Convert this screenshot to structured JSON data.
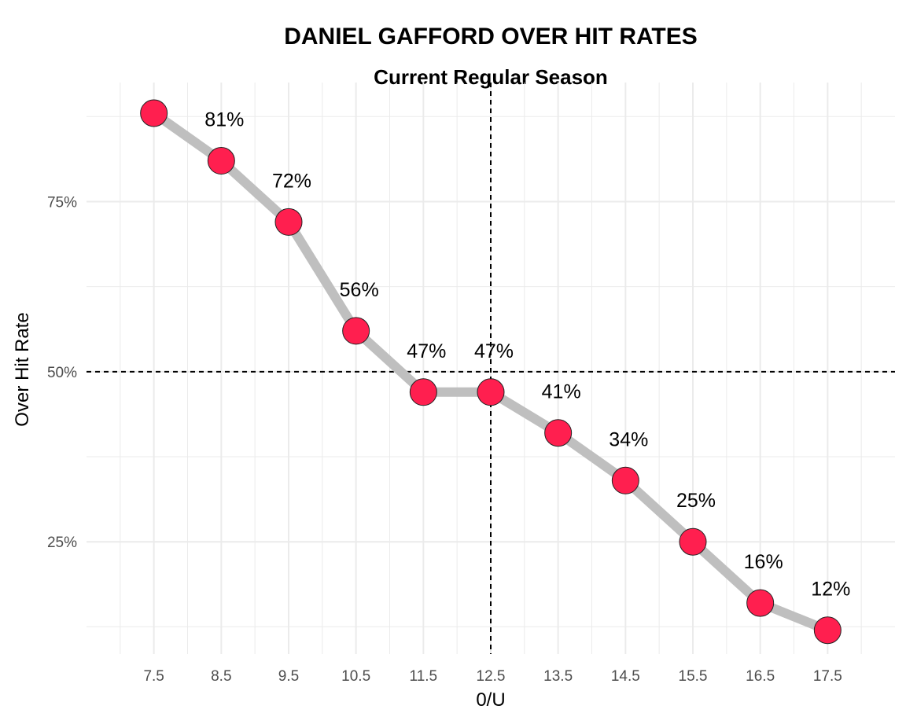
{
  "chart_data": {
    "type": "line",
    "title": "DANIEL GAFFORD OVER HIT RATES",
    "subtitle": "Current Regular Season",
    "xlabel": "0/U",
    "ylabel": "Over Hit Rate",
    "x": [
      7.5,
      8.5,
      9.5,
      10.5,
      11.5,
      12.5,
      13.5,
      14.5,
      15.5,
      16.5,
      17.5
    ],
    "x_tick_labels": [
      "7.5",
      "8.5",
      "9.5",
      "10.5",
      "11.5",
      "12.5",
      "13.5",
      "14.5",
      "15.5",
      "16.5",
      "17.5"
    ],
    "values": [
      88,
      81,
      72,
      56,
      47,
      47,
      41,
      34,
      25,
      16,
      12
    ],
    "data_labels": [
      "",
      "81%",
      "72%",
      "56%",
      "47%",
      "47%",
      "41%",
      "34%",
      "25%",
      "16%",
      "12%"
    ],
    "y_ticks": [
      25,
      50,
      75
    ],
    "y_tick_labels": [
      "25%",
      "50%",
      "75%"
    ],
    "xlim": [
      6.5,
      18.5
    ],
    "ylim": [
      8.5,
      92.5
    ],
    "reference_lines": {
      "x": 12.5,
      "y": 50
    },
    "grid": true,
    "legend": "none",
    "colors": {
      "point_fill": "#ff1f4f",
      "point_stroke": "#222222",
      "line": "#bfbfbf",
      "grid": "#ebebeb",
      "reference": "#000000"
    }
  }
}
